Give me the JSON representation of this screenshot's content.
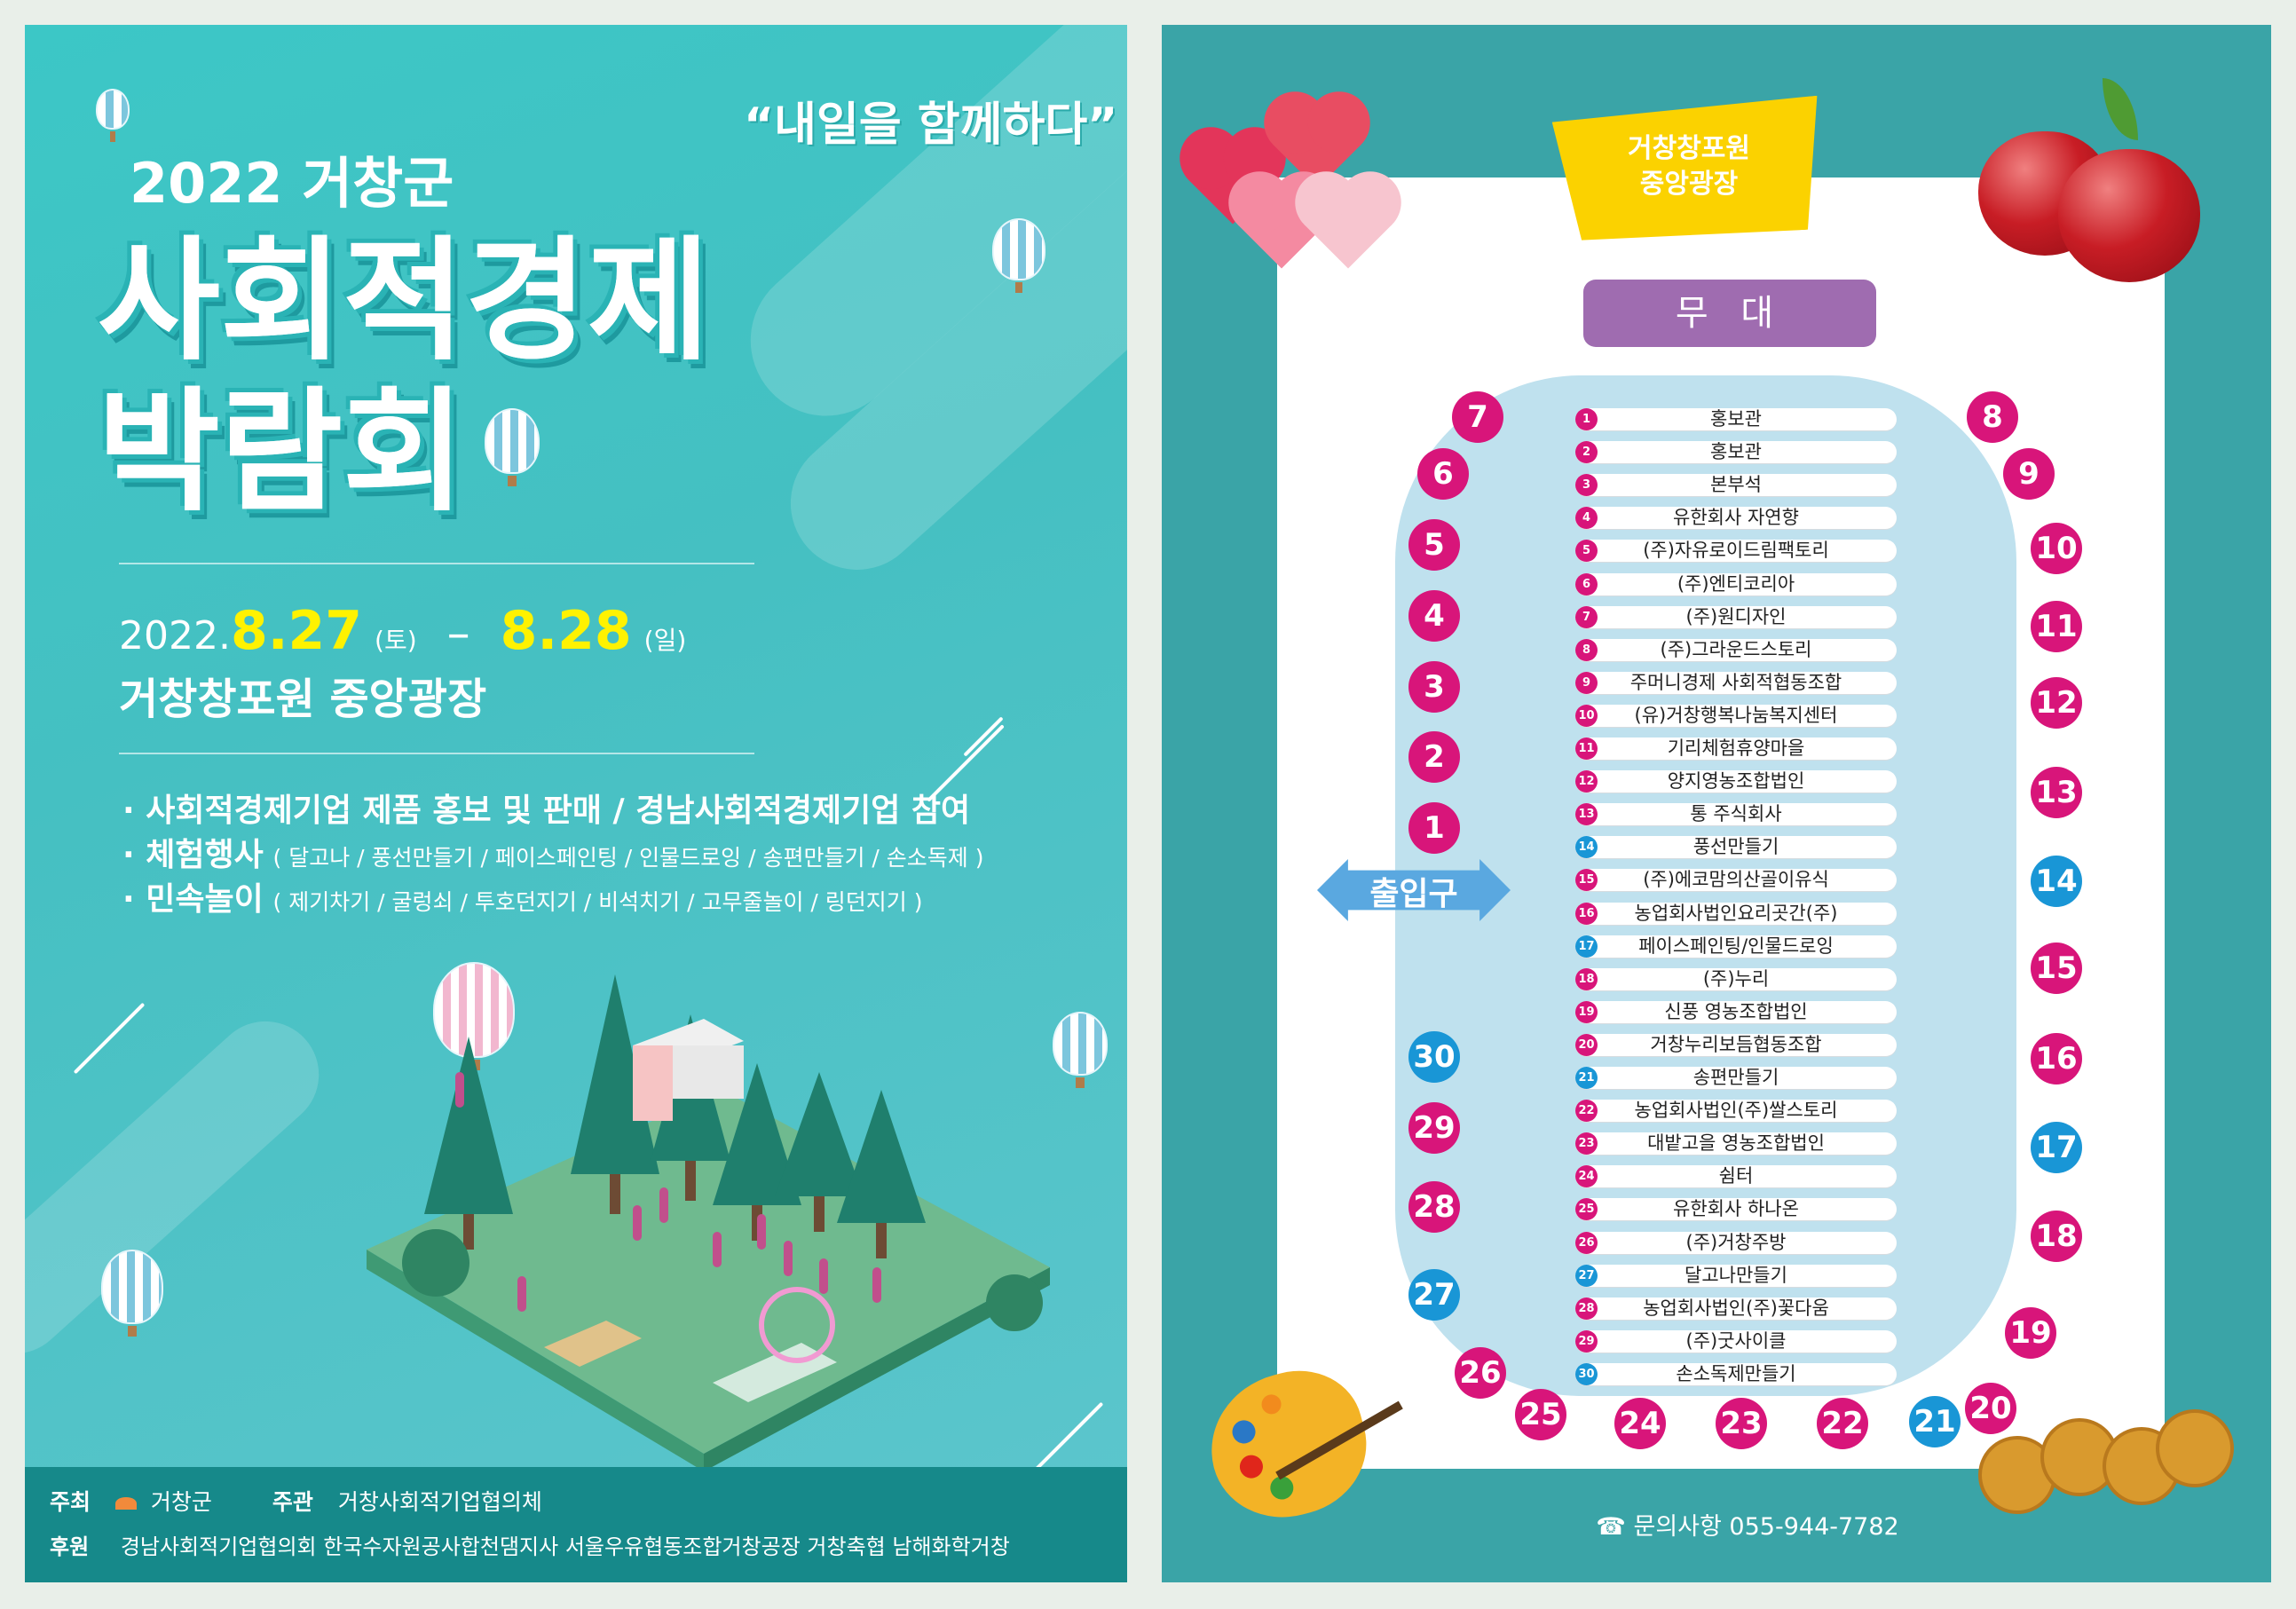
{
  "left_poster": {
    "slogan": "“내일을 함께하다”",
    "year_title": "2022 거창군",
    "title_line1": "사회적경제",
    "title_line2": "박람회",
    "date": {
      "year": "2022.",
      "start": "8.27",
      "start_day": "(토)",
      "dash": "–",
      "end": "8.28",
      "end_day": "(일)"
    },
    "venue": "거창창포원 중앙광장",
    "bullets": [
      {
        "main": "· 사회적경제기업 제품 홍보 및 판매  / 경남사회적경제기업 참여",
        "sub": ""
      },
      {
        "main": "· 체험행사",
        "sub": "( 달고나 / 풍선만들기 / 페이스페인팅 / 인물드로잉 / 송편만들기 / 손소독제 )"
      },
      {
        "main": "· 민속놀이",
        "sub": "( 제기차기 / 굴렁쇠 / 투호던지기 / 비석치기 / 고무줄놀이 / 링던지기 )"
      }
    ],
    "footer": {
      "host_label": "주최",
      "host": "거창군",
      "organizer_label": "주관",
      "organizer": "거창사회적기업협의체",
      "sponsor_label": "후원",
      "sponsors": "경남사회적기업협의회  한국수자원공사합천댐지사  서울우유협동조합거창공장  거창축협  남해화학거창"
    }
  },
  "right_poster": {
    "venue_tag_line1": "거창창포원",
    "venue_tag_line2": "중앙광장",
    "stage": "무 대",
    "entrance": "출입구",
    "booths": [
      {
        "num": "1",
        "name": "홍보관",
        "color": "mag"
      },
      {
        "num": "2",
        "name": "홍보관",
        "color": "mag"
      },
      {
        "num": "3",
        "name": "본부석",
        "color": "mag"
      },
      {
        "num": "4",
        "name": "유한회사 자연향",
        "color": "mag"
      },
      {
        "num": "5",
        "name": "(주)자유로이드림팩토리",
        "color": "mag"
      },
      {
        "num": "6",
        "name": "(주)엔티코리아",
        "color": "mag"
      },
      {
        "num": "7",
        "name": "(주)원디자인",
        "color": "mag"
      },
      {
        "num": "8",
        "name": "(주)그라운드스토리",
        "color": "mag"
      },
      {
        "num": "9",
        "name": "주머니경제 사회적협동조합",
        "color": "mag"
      },
      {
        "num": "10",
        "name": "(유)거창행복나눔복지센터",
        "color": "mag"
      },
      {
        "num": "11",
        "name": "기리체험휴양마을",
        "color": "mag"
      },
      {
        "num": "12",
        "name": "양지영농조합법인",
        "color": "mag"
      },
      {
        "num": "13",
        "name": "통 주식회사",
        "color": "mag"
      },
      {
        "num": "14",
        "name": "풍선만들기",
        "color": "blu"
      },
      {
        "num": "15",
        "name": "(주)에코맘의산골이유식",
        "color": "mag"
      },
      {
        "num": "16",
        "name": "농업회사법인요리곳간(주)",
        "color": "mag"
      },
      {
        "num": "17",
        "name": "페이스페인팅/인물드로잉",
        "color": "blu"
      },
      {
        "num": "18",
        "name": "(주)누리",
        "color": "mag"
      },
      {
        "num": "19",
        "name": "신풍 영농조합법인",
        "color": "mag"
      },
      {
        "num": "20",
        "name": "거창누리보듬협동조합",
        "color": "mag"
      },
      {
        "num": "21",
        "name": "송편만들기",
        "color": "blu"
      },
      {
        "num": "22",
        "name": "농업회사법인(주)쌀스토리",
        "color": "mag"
      },
      {
        "num": "23",
        "name": "대밭고을 영농조합법인",
        "color": "mag"
      },
      {
        "num": "24",
        "name": "쉼터",
        "color": "mag"
      },
      {
        "num": "25",
        "name": "유한회사 하나온",
        "color": "mag"
      },
      {
        "num": "26",
        "name": "(주)거창주방",
        "color": "mag"
      },
      {
        "num": "27",
        "name": "달고나만들기",
        "color": "blu"
      },
      {
        "num": "28",
        "name": "농업회사법인(주)꽃다움",
        "color": "mag"
      },
      {
        "num": "29",
        "name": "(주)굿사이클",
        "color": "mag"
      },
      {
        "num": "30",
        "name": "손소독제만들기",
        "color": "blu"
      }
    ],
    "contact": "☎ 문의사항  055-944-7782"
  }
}
